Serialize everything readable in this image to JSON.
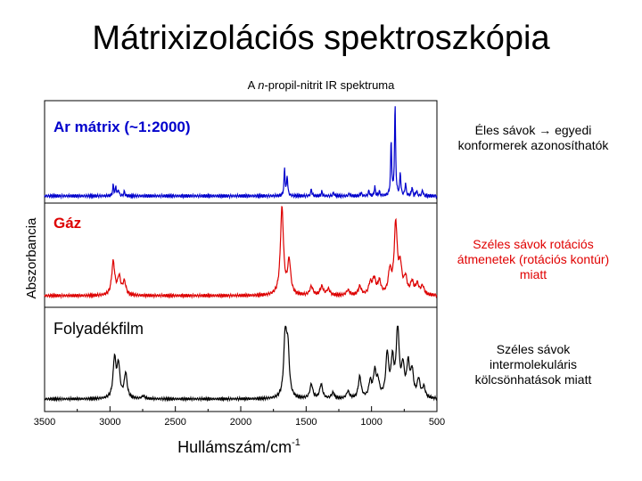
{
  "slide": {
    "title": "Mátrixizolációs spektroszkópia",
    "subtitle_prefix": "A ",
    "subtitle_italic": "n",
    "subtitle_suffix": "-propil-nitrit IR spektruma"
  },
  "notes": {
    "sharp": "Éles sávok → egyedi konformerek azonosíthatók",
    "gas": "Széles sávok rotációs átmenetek (rotációs kontúr) miatt",
    "liquid": "Széles sávok intermolekuláris kölcsönhatások miatt"
  },
  "colors": {
    "matrix": "#0000cc",
    "gas": "#dd0000",
    "liquid": "#000000"
  },
  "chart_data": {
    "type": "line",
    "xlabel": "Hullámszám/cm",
    "xlabel_sup": "-1",
    "ylabel": "Abszorbancia",
    "xlim": [
      3500,
      500
    ],
    "x_reversed": true,
    "x_ticks": [
      "3500",
      "3000",
      "2500",
      "2000",
      "1500",
      "1000",
      "500"
    ],
    "grid": false,
    "series": [
      {
        "name": "Ar mátrix (~1:2000)",
        "color": "#0000cc",
        "kind": "sharp",
        "peaks": [
          [
            2975,
            0.12
          ],
          [
            2955,
            0.1
          ],
          [
            2935,
            0.07
          ],
          [
            2890,
            0.05
          ],
          [
            1665,
            0.3
          ],
          [
            1645,
            0.22
          ],
          [
            1460,
            0.08
          ],
          [
            1380,
            0.05
          ],
          [
            1290,
            0.04
          ],
          [
            1170,
            0.03
          ],
          [
            1080,
            0.04
          ],
          [
            1020,
            0.06
          ],
          [
            975,
            0.1
          ],
          [
            940,
            0.05
          ],
          [
            850,
            0.6
          ],
          [
            820,
            1.0
          ],
          [
            780,
            0.25
          ],
          [
            740,
            0.14
          ],
          [
            690,
            0.1
          ],
          [
            655,
            0.06
          ],
          [
            610,
            0.07
          ]
        ]
      },
      {
        "name": "Gáz",
        "color": "#dd0000",
        "kind": "gas",
        "peaks": [
          [
            2975,
            0.38
          ],
          [
            2930,
            0.2
          ],
          [
            2890,
            0.15
          ],
          [
            1685,
            1.0
          ],
          [
            1630,
            0.38
          ],
          [
            1460,
            0.1
          ],
          [
            1380,
            0.1
          ],
          [
            1330,
            0.07
          ],
          [
            1180,
            0.06
          ],
          [
            1090,
            0.1
          ],
          [
            1010,
            0.13
          ],
          [
            980,
            0.18
          ],
          [
            940,
            0.15
          ],
          [
            860,
            0.26
          ],
          [
            815,
            0.8
          ],
          [
            780,
            0.3
          ],
          [
            740,
            0.18
          ],
          [
            690,
            0.14
          ],
          [
            650,
            0.12
          ],
          [
            610,
            0.1
          ]
        ]
      },
      {
        "name": "Folyadékfilm",
        "color": "#000000",
        "kind": "liquid",
        "peaks": [
          [
            2965,
            0.55
          ],
          [
            2935,
            0.45
          ],
          [
            2880,
            0.35
          ],
          [
            2745,
            0.04
          ],
          [
            1660,
            0.85
          ],
          [
            1640,
            0.65
          ],
          [
            1460,
            0.2
          ],
          [
            1385,
            0.2
          ],
          [
            1295,
            0.08
          ],
          [
            1180,
            0.1
          ],
          [
            1090,
            0.3
          ],
          [
            1010,
            0.22
          ],
          [
            975,
            0.35
          ],
          [
            950,
            0.2
          ],
          [
            880,
            0.6
          ],
          [
            840,
            0.5
          ],
          [
            800,
            0.98
          ],
          [
            760,
            0.4
          ],
          [
            720,
            0.45
          ],
          [
            690,
            0.35
          ],
          [
            640,
            0.25
          ],
          [
            600,
            0.15
          ]
        ]
      }
    ]
  }
}
